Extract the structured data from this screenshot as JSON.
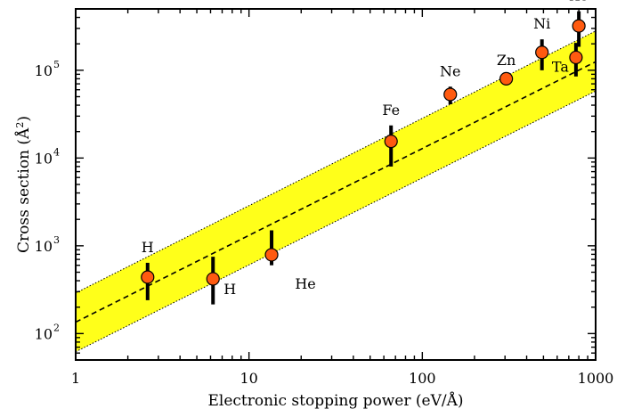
{
  "chart_data": {
    "type": "scatter",
    "xscale": "log",
    "yscale": "log",
    "xlim": [
      1,
      1000
    ],
    "ylim": [
      50,
      500000
    ],
    "xlabel": "Electronic stopping power (eV/Å)",
    "ylabel": "Cross section (Å²)",
    "x_ticks": [
      {
        "value": 1,
        "label": "1"
      },
      {
        "value": 10,
        "label": "10"
      },
      {
        "value": 100,
        "label": "100"
      },
      {
        "value": 1000,
        "label": "1000"
      }
    ],
    "y_ticks": [
      {
        "value": 100,
        "base": "10",
        "exp": "2"
      },
      {
        "value": 1000,
        "base": "10",
        "exp": "3"
      },
      {
        "value": 10000,
        "base": "10",
        "exp": "4"
      },
      {
        "value": 100000,
        "base": "10",
        "exp": "5"
      }
    ],
    "points": [
      {
        "label": "H",
        "x": 2.6,
        "y": 440,
        "y_low": 240,
        "y_high": 640,
        "label_side": "above"
      },
      {
        "label": "H",
        "x": 6.2,
        "y": 420,
        "y_low": 215,
        "y_high": 750,
        "label_side": "right"
      },
      {
        "label": "He",
        "x": 13.5,
        "y": 790,
        "y_low": 600,
        "y_high": 1500,
        "label_side": "below-right"
      },
      {
        "label": "Fe",
        "x": 66,
        "y": 15500,
        "y_low": 8000,
        "y_high": 23500,
        "label_side": "above"
      },
      {
        "label": "Ne",
        "x": 145,
        "y": 53000,
        "y_low": 41000,
        "y_high": 65000,
        "label_side": "above"
      },
      {
        "label": "Zn",
        "x": 305,
        "y": 80000,
        "y_low": 74000,
        "y_high": 87000,
        "label_side": "above"
      },
      {
        "label": "Ni",
        "x": 490,
        "y": 160000,
        "y_low": 100000,
        "y_high": 225000,
        "label_side": "above"
      },
      {
        "label": "Ta",
        "x": 770,
        "y": 140000,
        "y_low": 85000,
        "y_high": 205000,
        "label_side": "below-left"
      },
      {
        "label": "Xe",
        "x": 800,
        "y": 320000,
        "y_low": 185000,
        "y_high": 470000,
        "label_side": "above"
      }
    ],
    "fit_line": {
      "x": [
        1,
        1000
      ],
      "y": [
        135,
        125000
      ],
      "style": "dashed"
    },
    "band": {
      "upper": {
        "x": [
          1,
          1000
        ],
        "y": [
          290,
          280000
        ]
      },
      "lower": {
        "x": [
          1,
          1000
        ],
        "y": [
          62,
          58000
        ]
      },
      "color": "#ffff1a"
    },
    "marker_color": "#ff5a10",
    "grid": false
  }
}
